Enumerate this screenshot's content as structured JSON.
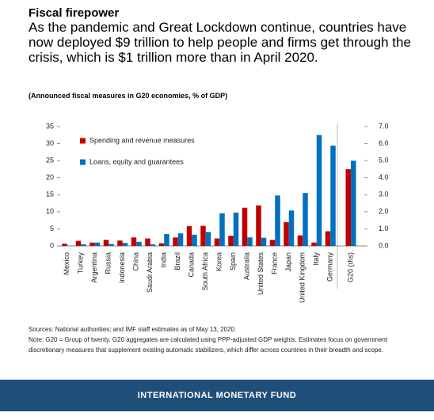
{
  "header": {
    "title": "Fiscal firepower",
    "subtitle": "As the pandemic and Great Lockdown continue, countries have now deployed $9 trillion to help people and firms get through the crisis, which is $1 trillion more than in April 2020.",
    "caption": "(Announced fiscal measures in G20 economies, % of GDP)"
  },
  "chart_data": [
    {
      "type": "bar",
      "categories": [
        "Mexico",
        "Turkey",
        "Argentina",
        "Russia",
        "Indonesia",
        "China",
        "Saudi Arabia",
        "India",
        "Brazil",
        "Canada",
        "South Africa",
        "Korea",
        "Spain",
        "Australia",
        "United States",
        "France",
        "Japan",
        "United Kingdom",
        "Italy",
        "Germany"
      ],
      "series": [
        {
          "name": "Spending and revenue measures",
          "color": "#c00000",
          "values": [
            0.7,
            1.5,
            1.0,
            1.8,
            1.6,
            2.5,
            2.2,
            0.8,
            2.5,
            5.8,
            5.9,
            2.2,
            3.0,
            11.2,
            11.9,
            1.8,
            7.0,
            3.1,
            1.0,
            4.3
          ]
        },
        {
          "name": "Loans, equity and guarantees",
          "color": "#0070c0",
          "values": [
            0.1,
            0.5,
            1.0,
            0.6,
            0.9,
            1.2,
            0.5,
            3.5,
            3.7,
            3.3,
            4.1,
            9.6,
            9.8,
            2.5,
            2.4,
            14.8,
            10.4,
            15.5,
            32.5,
            29.4
          ]
        }
      ],
      "ylim": [
        0,
        35
      ],
      "yticks": [
        0,
        5,
        10,
        15,
        20,
        25,
        30,
        35
      ]
    },
    {
      "type": "bar",
      "categories": [
        "G20 (rhs)"
      ],
      "series": [
        {
          "color": "#c00000",
          "values": [
            4.5
          ],
          "axis": "y2"
        },
        {
          "color": "#0070c0",
          "values": [
            5.0
          ],
          "axis": "y2"
        }
      ],
      "y2lim": [
        0,
        7
      ],
      "y2ticks": [
        {
          "value": 0,
          "label": "0.0"
        },
        {
          "value": 1,
          "label": "1.0"
        },
        {
          "value": 2,
          "label": "2.0"
        },
        {
          "value": 3,
          "label": "3.0"
        },
        {
          "value": 4,
          "label": "4.0"
        },
        {
          "value": 5,
          "label": "5.0"
        },
        {
          "value": 6,
          "label": "6.0"
        },
        {
          "value": 7,
          "label": "7.0"
        }
      ]
    }
  ],
  "notes": {
    "sources": "Sources: National authorities; and IMF staff estimates as of May 13, 2020.",
    "note": "Note: G20 = Group of twenty. G20 aggregates are calculated using PPP-adjusted GDP weights. Estimates focus on government discretionary measures that supplement existing automatic stabilizers, which differ across countries in their breadth and scope."
  },
  "footer": "INTERNATIONAL MONETARY FUND"
}
